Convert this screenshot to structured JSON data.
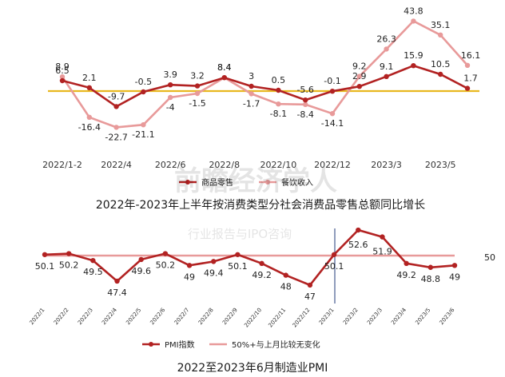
{
  "chart_data": [
    {
      "type": "line",
      "title": "2022年-2023年上半年按消费类型分社会消费品零售总额同比增长",
      "x_tick_labels": [
        "2022/1-2",
        "2022/4",
        "2022/6",
        "2022/8",
        "2022/10",
        "2022/12",
        "2023/3",
        "2023/5"
      ],
      "categories": [
        "2022/1-2",
        "2022/3",
        "2022/4",
        "2022/5",
        "2022/6",
        "2022/7",
        "2022/8",
        "2022/9",
        "2022/10",
        "2022/11",
        "2022/12",
        "2023/1-2",
        "2023/3",
        "2023/4",
        "2023/5",
        "2023/6"
      ],
      "series": [
        {
          "name": "商品零售",
          "color": "#b22222",
          "values": [
            6.5,
            2.1,
            -9.7,
            -0.5,
            3.9,
            3.2,
            8.4,
            3,
            0.5,
            -5.6,
            -0.1,
            2.9,
            9.1,
            15.9,
            10.5,
            1.7
          ]
        },
        {
          "name": "餐饮收入",
          "color": "#e89a9a",
          "values": [
            8.9,
            -16.4,
            -22.7,
            -21.1,
            -4,
            -1.5,
            8.4,
            -1.7,
            -8.1,
            -8.4,
            -14.1,
            9.2,
            26.3,
            43.8,
            35.1,
            16.1
          ]
        }
      ],
      "reference_line": {
        "value": 0,
        "color": "#e8b820"
      },
      "ylim": [
        -28,
        48
      ],
      "grid": false,
      "legend": "bottom"
    },
    {
      "type": "line",
      "title": "2022至2023年6月制造业PMI",
      "categories": [
        "2022/1",
        "2022/2",
        "2022/3",
        "2022/4",
        "2022/5",
        "2022/6",
        "2022/7",
        "2022/8",
        "2022/9",
        "2022/10",
        "2022/11",
        "2022/12",
        "2023/1",
        "2023/2",
        "2023/3",
        "2023/4",
        "2023/5",
        "2023/6"
      ],
      "series": [
        {
          "name": "PMI指数",
          "color": "#b22222",
          "values": [
            50.1,
            50.2,
            49.5,
            47.4,
            49.6,
            50.2,
            49,
            49.4,
            50.1,
            49.2,
            48,
            47,
            50.1,
            52.6,
            51.9,
            49.2,
            48.8,
            49
          ]
        },
        {
          "name": "50%+与上月比较无变化",
          "color": "#e89a9a",
          "values": [
            50,
            50,
            50,
            50,
            50,
            50,
            50,
            50,
            50,
            50,
            50,
            50,
            50,
            50,
            50,
            50,
            50,
            50
          ]
        }
      ],
      "reference_label": "50",
      "ylim": [
        45.8,
        53.5
      ],
      "grid": false,
      "legend": "bottom"
    }
  ],
  "watermark": {
    "line1": "前瞻经济学人",
    "line2": "行业报告与IPO咨询"
  }
}
